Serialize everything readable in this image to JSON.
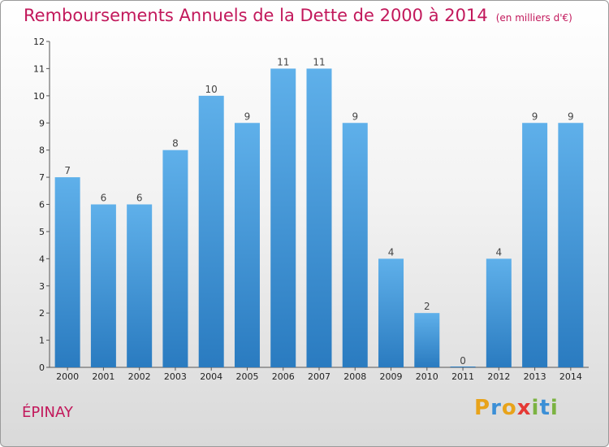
{
  "title": "Remboursements Annuels de la Dette de 2000 à 2014",
  "unit": "(en milliers d'€)",
  "commune": "ÉPINAY",
  "logo": {
    "text": "Proxiti",
    "colors": [
      "#e8a31a",
      "#3b8fd6",
      "#e8a31a",
      "#e53935",
      "#7cb342",
      "#3b8fd6",
      "#7cb342"
    ]
  },
  "colors": {
    "title": "#c2185b",
    "bar_top": "#5fb0ea",
    "bar_bottom": "#2a7bc0"
  },
  "chart_data": {
    "type": "bar",
    "title": "Remboursements Annuels de la Dette de 2000 à 2014",
    "categories": [
      "2000",
      "2001",
      "2002",
      "2003",
      "2004",
      "2005",
      "2006",
      "2007",
      "2008",
      "2009",
      "2010",
      "2011",
      "2012",
      "2013",
      "2014"
    ],
    "values": [
      7,
      6,
      6,
      8,
      10,
      9,
      11,
      11,
      9,
      4,
      2,
      0,
      4,
      9,
      9
    ],
    "ylim": [
      0,
      12
    ],
    "yticks": [
      0,
      1,
      2,
      3,
      4,
      5,
      6,
      7,
      8,
      9,
      10,
      11,
      12
    ],
    "grid": false,
    "xlabel": "",
    "ylabel": ""
  }
}
